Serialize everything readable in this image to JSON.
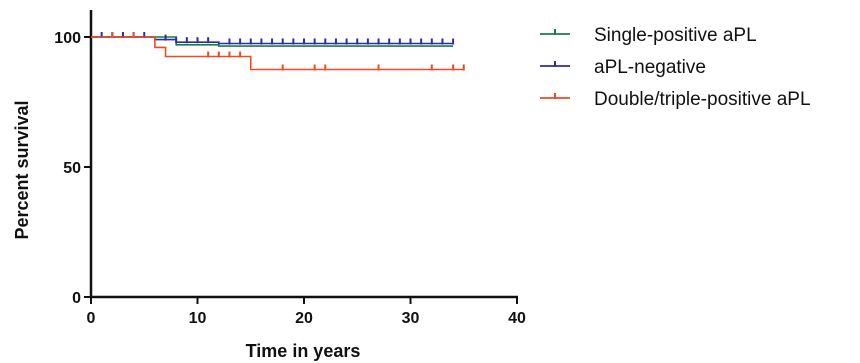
{
  "chart_data": {
    "type": "line",
    "subtype": "kaplan-meier step",
    "xlabel": "Time in years",
    "ylabel": "Percent survival",
    "xlim": [
      0,
      40
    ],
    "ylim": [
      0,
      100
    ],
    "x_ticks": [
      "0",
      "10",
      "20",
      "30",
      "40"
    ],
    "y_ticks": [
      "0",
      "50",
      "100"
    ],
    "grid": false,
    "legend_position": "top-right",
    "series": [
      {
        "name": "Single-positive aPL",
        "color": "#1e7a4c",
        "steps": [
          [
            0,
            100
          ],
          [
            8,
            97
          ],
          [
            12,
            96.5
          ],
          [
            34,
            96.5
          ]
        ],
        "censor_x": []
      },
      {
        "name": "aPL-negative",
        "color": "#2b2ea3",
        "steps": [
          [
            0,
            100
          ],
          [
            6,
            99
          ],
          [
            8,
            98
          ],
          [
            12,
            97.5
          ],
          [
            34,
            97.5
          ]
        ],
        "censor_x": [
          1,
          2,
          3,
          4,
          5,
          7,
          8,
          9,
          10,
          11,
          13,
          14,
          15,
          16,
          17,
          18,
          19,
          20,
          21,
          22,
          23,
          24,
          25,
          26,
          27,
          28,
          29,
          30,
          31,
          32,
          33,
          34
        ]
      },
      {
        "name": "Double/triple-positive aPL",
        "color": "#f04a23",
        "steps": [
          [
            0,
            100
          ],
          [
            6,
            96
          ],
          [
            7,
            92.5
          ],
          [
            15,
            87.5
          ],
          [
            35,
            87.5
          ]
        ],
        "censor_x": [
          2,
          4,
          11,
          12,
          13,
          14,
          18,
          21,
          22,
          27,
          32,
          34,
          35
        ]
      }
    ]
  }
}
